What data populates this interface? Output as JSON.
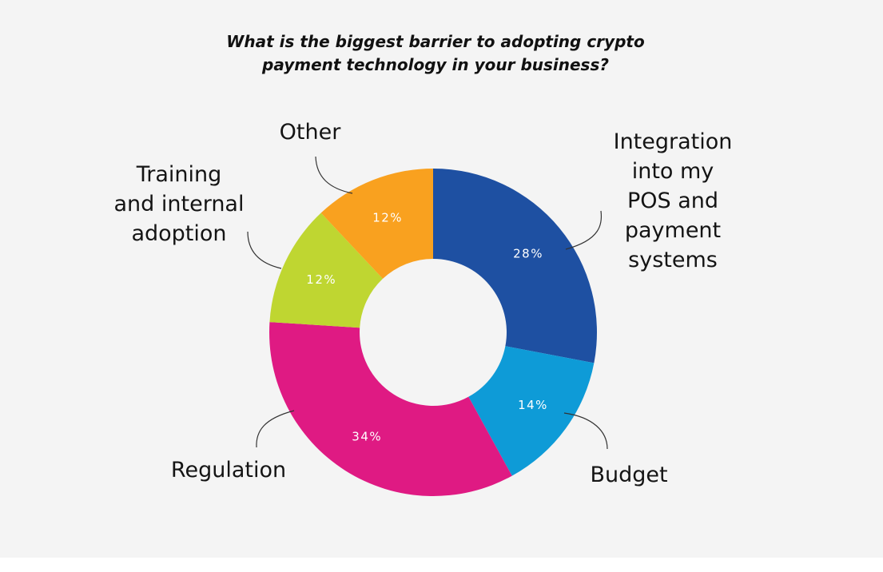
{
  "chart_data": {
    "type": "pie",
    "title": "What is the biggest barrier to adopting crypto payment technology in your business?",
    "title_lines": [
      "What is the biggest barrier to adopting crypto",
      "payment technology in your business?"
    ],
    "donut": true,
    "unit": "%",
    "slices": [
      {
        "label": "Integration into my POS and payment systems",
        "label_lines": [
          "Integration",
          "into my",
          "POS and",
          "payment",
          "systems"
        ],
        "value": 28,
        "value_label": "28%",
        "color": "#1e50a2"
      },
      {
        "label": "Budget",
        "label_lines": [
          "Budget"
        ],
        "value": 14,
        "value_label": "14%",
        "color": "#0e9bd7"
      },
      {
        "label": "Regulation",
        "label_lines": [
          "Regulation"
        ],
        "value": 34,
        "value_label": "34%",
        "color": "#df1a83"
      },
      {
        "label": "Training and internal adoption",
        "label_lines": [
          "Training",
          "and internal",
          "adoption"
        ],
        "value": 12,
        "value_label": "12%",
        "color": "#bfd631"
      },
      {
        "label": "Other",
        "label_lines": [
          "Other"
        ],
        "value": 12,
        "value_label": "12%",
        "color": "#f9a11f"
      }
    ]
  }
}
